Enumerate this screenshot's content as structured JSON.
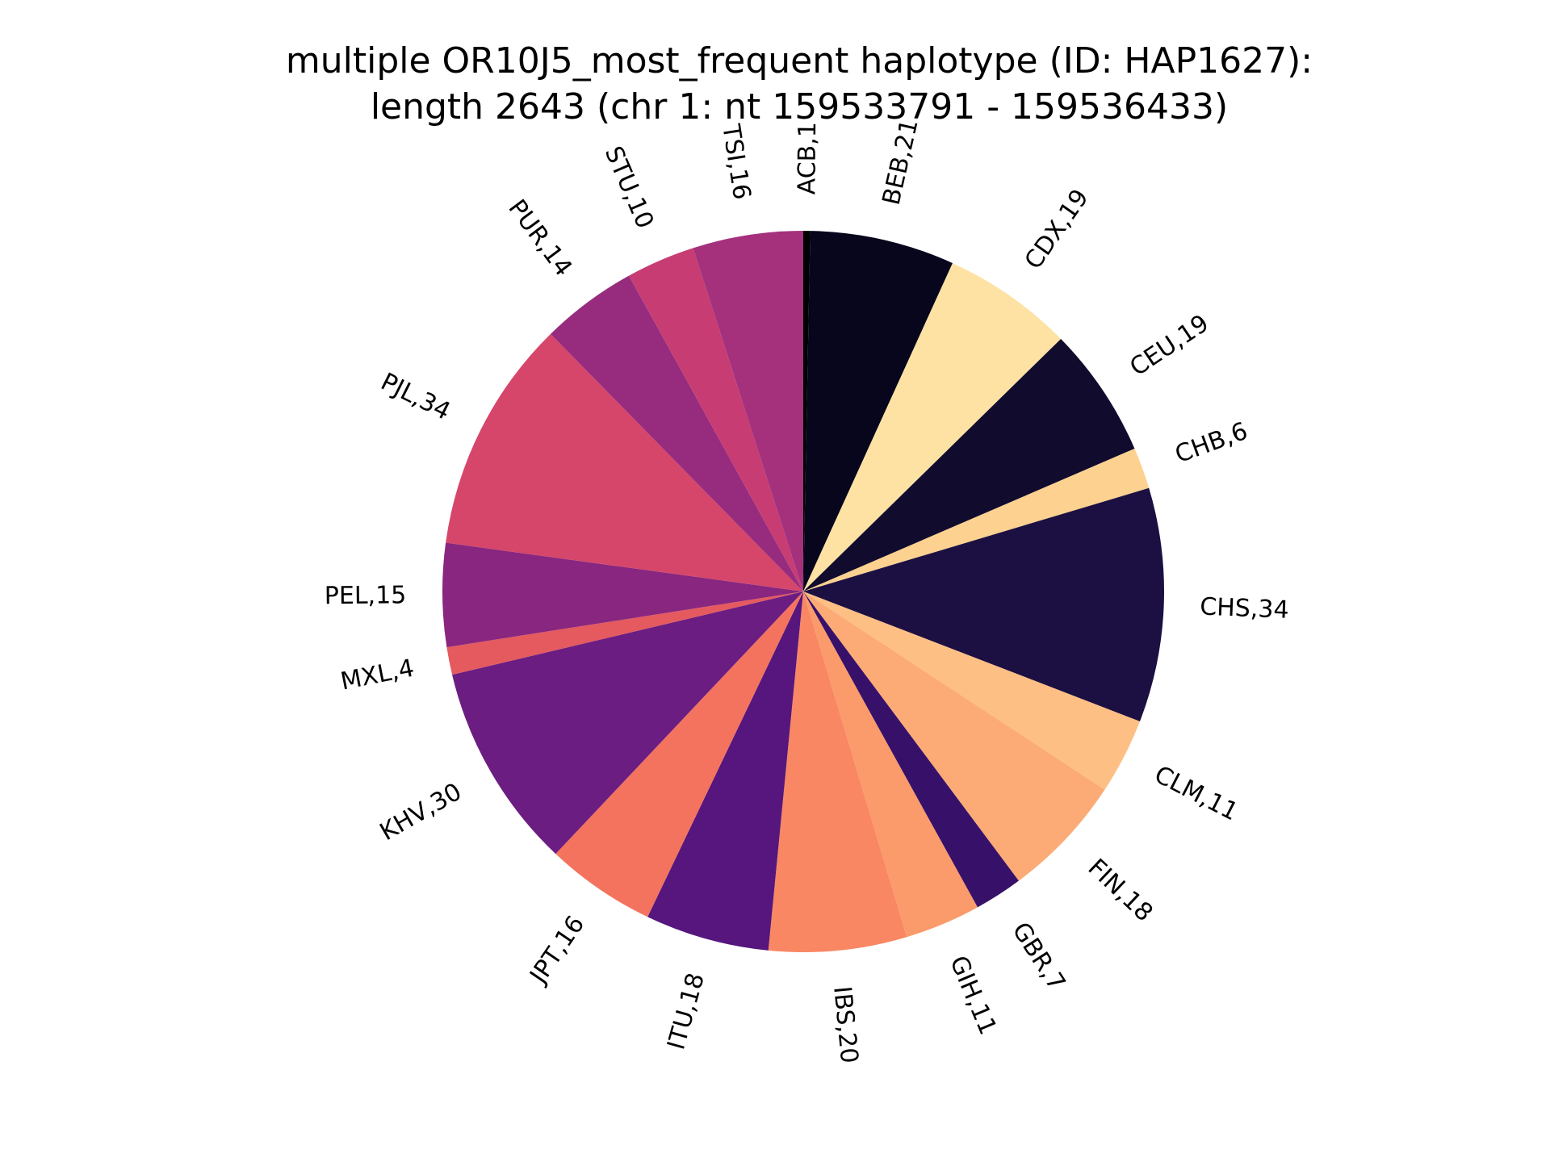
{
  "chart_data": {
    "type": "pie",
    "title": "multiple OR10J5_most_frequent haplotype (ID: HAP1627):",
    "subtitle": "length 2643 (chr 1: nt 159533791 - 159536433)",
    "start_angle_deg": 90,
    "direction": "clockwise",
    "slices": [
      {
        "label": "ACB",
        "value": 1,
        "display": "ACB,1",
        "color": "#000004"
      },
      {
        "label": "BEB",
        "value": 21,
        "display": "BEB,21",
        "color": "#07061c"
      },
      {
        "label": "CDX",
        "value": 19,
        "display": "CDX,19",
        "color": "#fde2a4"
      },
      {
        "label": "CEU",
        "value": 19,
        "display": "CEU,19",
        "color": "#110b2e"
      },
      {
        "label": "CHB",
        "value": 6,
        "display": "CHB,6",
        "color": "#fdd18f"
      },
      {
        "label": "CHS",
        "value": 34,
        "display": "CHS,34",
        "color": "#1c1042"
      },
      {
        "label": "CLM",
        "value": 11,
        "display": "CLM,11",
        "color": "#febf84"
      },
      {
        "label": "FIN",
        "value": 18,
        "display": "FIN,18",
        "color": "#fcab76"
      },
      {
        "label": "GBR",
        "value": 7,
        "display": "GBR,7",
        "color": "#371169"
      },
      {
        "label": "GIH",
        "value": 11,
        "display": "GIH,11",
        "color": "#fb9a6b"
      },
      {
        "label": "IBS",
        "value": 20,
        "display": "IBS,20",
        "color": "#f98763"
      },
      {
        "label": "ITU",
        "value": 18,
        "display": "ITU,18",
        "color": "#56167d"
      },
      {
        "label": "JPT",
        "value": 16,
        "display": "JPT,16",
        "color": "#f4735e"
      },
      {
        "label": "KHV",
        "value": 30,
        "display": "KHV,30",
        "color": "#6b1d81"
      },
      {
        "label": "MXL",
        "value": 4,
        "display": "MXL,4",
        "color": "#e45a5f"
      },
      {
        "label": "PEL",
        "value": 15,
        "display": "PEL,15",
        "color": "#89267f"
      },
      {
        "label": "PJL",
        "value": 34,
        "display": "PJL,34",
        "color": "#d5466a"
      },
      {
        "label": "PUR",
        "value": 14,
        "display": "PUR,14",
        "color": "#972c7e"
      },
      {
        "label": "STU",
        "value": 10,
        "display": "STU,10",
        "color": "#c73d73"
      },
      {
        "label": "TSI",
        "value": 16,
        "display": "TSI,16",
        "color": "#a5317d"
      }
    ]
  }
}
